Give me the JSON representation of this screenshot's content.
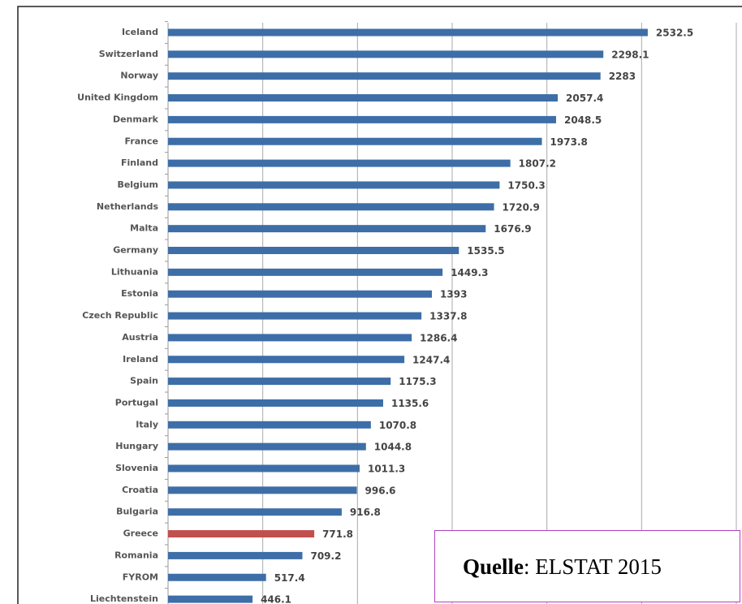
{
  "chart_data": {
    "type": "barh",
    "categories": [
      "Iceland",
      "Switzerland",
      "Norway",
      "United Kingdom",
      "Denmark",
      "France",
      "Finland",
      "Belgium",
      "Netherlands",
      "Malta",
      "Germany",
      "Lithuania",
      "Estonia",
      "Czech Republic",
      "Austria",
      "Ireland",
      "Spain",
      "Portugal",
      "Italy",
      "Hungary",
      "Slovenia",
      "Croatia",
      "Bulgaria",
      "Greece",
      "Romania",
      "FYROM",
      "Liechtenstein"
    ],
    "values": [
      2532.5,
      2298.1,
      2283,
      2057.4,
      2048.5,
      1973.8,
      1807.2,
      1750.3,
      1720.9,
      1676.9,
      1535.5,
      1449.3,
      1393,
      1337.8,
      1286.4,
      1247.4,
      1175.3,
      1135.6,
      1070.8,
      1044.8,
      1011.3,
      996.6,
      916.8,
      771.8,
      709.2,
      517.4,
      446.1
    ],
    "colors": [
      "#3d6ea8",
      "#3d6ea8",
      "#3d6ea8",
      "#3d6ea8",
      "#3d6ea8",
      "#3d6ea8",
      "#3d6ea8",
      "#3d6ea8",
      "#3d6ea8",
      "#3d6ea8",
      "#3d6ea8",
      "#3d6ea8",
      "#3d6ea8",
      "#3d6ea8",
      "#3d6ea8",
      "#3d6ea8",
      "#3d6ea8",
      "#3d6ea8",
      "#3d6ea8",
      "#3d6ea8",
      "#3d6ea8",
      "#3d6ea8",
      "#3d6ea8",
      "#c0504d",
      "#3d6ea8",
      "#3d6ea8",
      "#3d6ea8"
    ],
    "xlim": [
      0,
      3000
    ],
    "xticks": [
      500,
      1000,
      1500,
      2000,
      2500,
      3000
    ],
    "grid": true,
    "source": [
      "Quelle",
      ": ELSTAT 2015"
    ]
  }
}
